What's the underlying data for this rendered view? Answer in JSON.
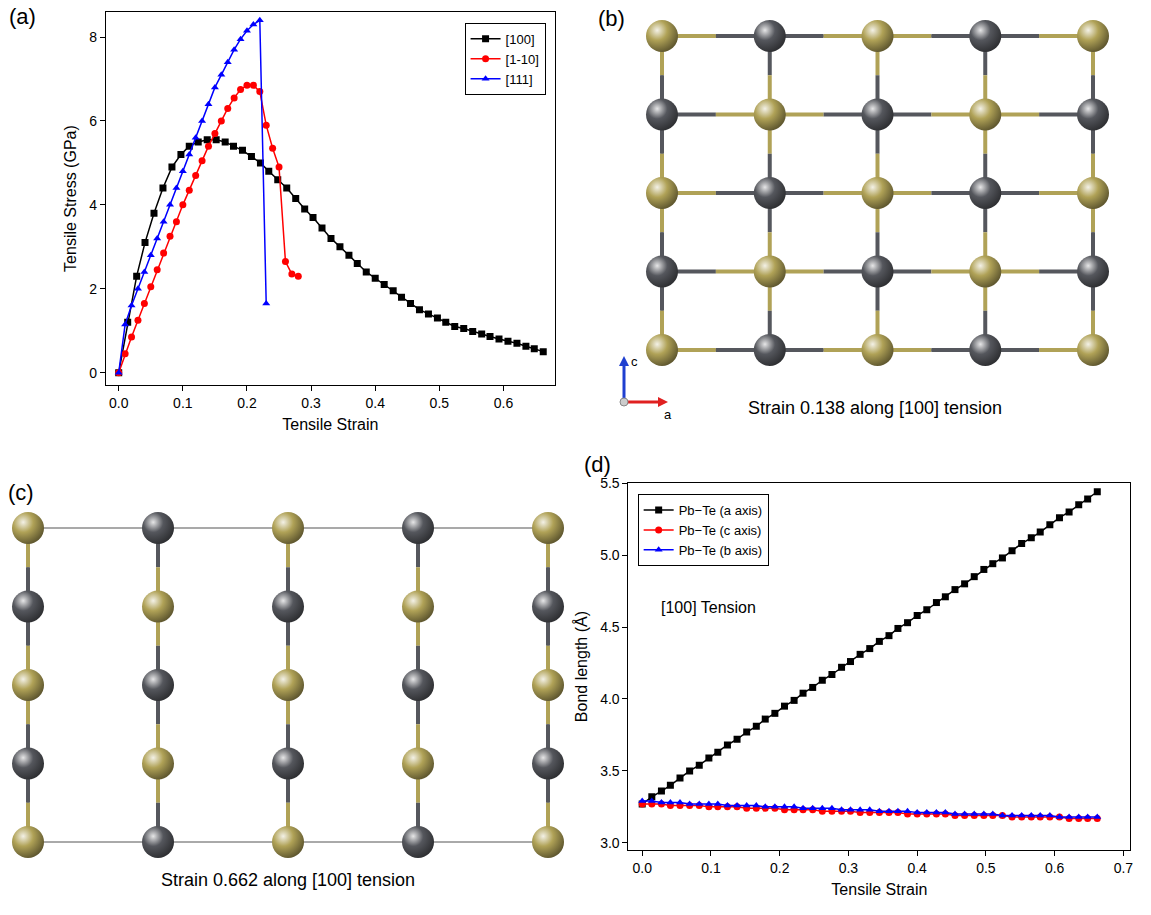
{
  "chart_data": [
    {
      "type": "line",
      "label": "(a)",
      "x_label": "Tensile Strain",
      "y_label": "Tensile Stress (GPa)",
      "xlim": [
        -0.02,
        0.68
      ],
      "ylim": [
        -0.3,
        8.6
      ],
      "xticks": [
        {
          "value": 0,
          "label": "0.0"
        },
        0.1,
        0.2,
        0.3,
        0.4,
        0.5,
        0.6
      ],
      "yticks": [
        0,
        2,
        4,
        6,
        8
      ],
      "grid": false,
      "legend": "upper right",
      "series": [
        {
          "name": "[100]",
          "color": "#000000",
          "marker": "square",
          "line_style": "solid",
          "x": [
            0,
            0.014,
            0.028,
            0.041,
            0.055,
            0.069,
            0.083,
            0.097,
            0.11,
            0.124,
            0.138,
            0.152,
            0.166,
            0.179,
            0.193,
            0.207,
            0.221,
            0.234,
            0.248,
            0.262,
            0.276,
            0.29,
            0.303,
            0.317,
            0.331,
            0.345,
            0.359,
            0.372,
            0.386,
            0.4,
            0.414,
            0.428,
            0.441,
            0.455,
            0.469,
            0.483,
            0.497,
            0.51,
            0.524,
            0.538,
            0.552,
            0.566,
            0.579,
            0.593,
            0.607,
            0.621,
            0.635,
            0.648,
            0.662
          ],
          "values": [
            0,
            1.2,
            2.3,
            3.1,
            3.8,
            4.4,
            4.9,
            5.2,
            5.4,
            5.5,
            5.55,
            5.55,
            5.5,
            5.4,
            5.3,
            5.15,
            5.0,
            4.8,
            4.6,
            4.4,
            4.15,
            3.9,
            3.7,
            3.45,
            3.2,
            3.0,
            2.8,
            2.6,
            2.4,
            2.25,
            2.1,
            1.95,
            1.8,
            1.65,
            1.5,
            1.4,
            1.3,
            1.2,
            1.1,
            1.05,
            0.98,
            0.92,
            0.86,
            0.8,
            0.75,
            0.7,
            0.63,
            0.57,
            0.5
          ]
        },
        {
          "name": "[1-10]",
          "color": "#ff0000",
          "marker": "circle",
          "line_style": "solid",
          "x": [
            0,
            0.01,
            0.02,
            0.03,
            0.04,
            0.05,
            0.06,
            0.07,
            0.08,
            0.09,
            0.1,
            0.11,
            0.12,
            0.13,
            0.14,
            0.15,
            0.16,
            0.17,
            0.18,
            0.19,
            0.2,
            0.21,
            0.22,
            0.23,
            0.24,
            0.25,
            0.26,
            0.27,
            0.28
          ],
          "values": [
            0,
            0.45,
            0.85,
            1.25,
            1.65,
            2.05,
            2.45,
            2.85,
            3.25,
            3.6,
            4.0,
            4.35,
            4.7,
            5.05,
            5.4,
            5.7,
            6.0,
            6.3,
            6.55,
            6.75,
            6.85,
            6.85,
            6.7,
            5.9,
            5.35,
            4.9,
            2.65,
            2.35,
            2.3
          ]
        },
        {
          "name": "[111]",
          "color": "#0000ff",
          "marker": "triangle-up",
          "line_style": "solid",
          "x": [
            0,
            0.01,
            0.02,
            0.03,
            0.04,
            0.05,
            0.06,
            0.07,
            0.08,
            0.09,
            0.1,
            0.11,
            0.12,
            0.13,
            0.14,
            0.15,
            0.16,
            0.17,
            0.18,
            0.19,
            0.2,
            0.21,
            0.22,
            0.23
          ],
          "values": [
            0,
            1.15,
            1.6,
            2.0,
            2.4,
            2.8,
            3.2,
            3.6,
            4.0,
            4.4,
            4.8,
            5.2,
            5.6,
            6.0,
            6.4,
            6.8,
            7.1,
            7.4,
            7.7,
            7.95,
            8.15,
            8.3,
            8.4,
            1.65
          ]
        }
      ]
    },
    {
      "type": "line",
      "label": "(d)",
      "x_label": "Tensile Strain",
      "y_label": "Bond length (Å)",
      "xlim": [
        -0.02,
        0.71
      ],
      "ylim": [
        2.95,
        5.5
      ],
      "xticks": [
        {
          "value": 0,
          "label": "0.0"
        },
        0.1,
        0.2,
        0.3,
        0.4,
        0.5,
        0.6,
        0.7
      ],
      "yticks": [
        {
          "value": 3,
          "label": "3.0"
        },
        3.5,
        {
          "value": 4,
          "label": "4.0"
        },
        4.5,
        {
          "value": 5,
          "label": "5.0"
        },
        5.5
      ],
      "grid": false,
      "legend": "upper left",
      "annotations": [
        "[100] Tension"
      ],
      "x": [
        0,
        0.014,
        0.028,
        0.041,
        0.055,
        0.069,
        0.083,
        0.097,
        0.11,
        0.124,
        0.138,
        0.152,
        0.166,
        0.179,
        0.193,
        0.207,
        0.221,
        0.234,
        0.248,
        0.262,
        0.276,
        0.29,
        0.303,
        0.317,
        0.331,
        0.345,
        0.359,
        0.372,
        0.386,
        0.4,
        0.414,
        0.428,
        0.441,
        0.455,
        0.469,
        0.483,
        0.497,
        0.51,
        0.524,
        0.538,
        0.552,
        0.566,
        0.579,
        0.593,
        0.607,
        0.621,
        0.635,
        0.648,
        0.662
      ],
      "series": [
        {
          "name": "Pb−Te (a axis)",
          "color": "#000000",
          "marker": "square",
          "line_style": "solid",
          "values": [
            3.27,
            3.32,
            3.36,
            3.4,
            3.45,
            3.5,
            3.54,
            3.59,
            3.63,
            3.68,
            3.72,
            3.77,
            3.81,
            3.86,
            3.9,
            3.95,
            3.99,
            4.04,
            4.08,
            4.13,
            4.17,
            4.22,
            4.26,
            4.31,
            4.35,
            4.4,
            4.44,
            4.49,
            4.53,
            4.58,
            4.62,
            4.67,
            4.71,
            4.76,
            4.8,
            4.85,
            4.9,
            4.94,
            4.98,
            5.03,
            5.08,
            5.12,
            5.16,
            5.21,
            5.26,
            5.3,
            5.35,
            5.39,
            5.44
          ]
        },
        {
          "name": "Pb−Te (c axis)",
          "color": "#ff0000",
          "marker": "circle",
          "line_style": "solid",
          "values": [
            3.27,
            3.27,
            3.27,
            3.26,
            3.26,
            3.26,
            3.26,
            3.25,
            3.25,
            3.25,
            3.25,
            3.24,
            3.24,
            3.24,
            3.24,
            3.23,
            3.23,
            3.23,
            3.23,
            3.22,
            3.22,
            3.22,
            3.22,
            3.21,
            3.21,
            3.21,
            3.21,
            3.21,
            3.2,
            3.2,
            3.2,
            3.2,
            3.2,
            3.19,
            3.19,
            3.19,
            3.19,
            3.19,
            3.19,
            3.18,
            3.18,
            3.18,
            3.18,
            3.18,
            3.18,
            3.17,
            3.17,
            3.17,
            3.17
          ]
        },
        {
          "name": "Pb−Te (b axis)",
          "color": "#0000ff",
          "marker": "triangle-up",
          "line_style": "solid",
          "values": [
            3.29,
            3.29,
            3.28,
            3.28,
            3.28,
            3.27,
            3.27,
            3.27,
            3.27,
            3.26,
            3.26,
            3.26,
            3.26,
            3.25,
            3.25,
            3.25,
            3.25,
            3.24,
            3.24,
            3.24,
            3.24,
            3.23,
            3.23,
            3.23,
            3.23,
            3.22,
            3.22,
            3.22,
            3.22,
            3.21,
            3.21,
            3.21,
            3.21,
            3.2,
            3.2,
            3.2,
            3.2,
            3.2,
            3.19,
            3.19,
            3.19,
            3.19,
            3.19,
            3.19,
            3.18,
            3.18,
            3.18,
            3.18,
            3.18
          ]
        }
      ]
    }
  ],
  "diagrams": [
    {
      "label": "(b)",
      "caption": "Strain 0.138 along [100] tension",
      "rows": 5,
      "cols": 5,
      "bonds": [
        "a",
        "c"
      ],
      "colors": [
        "#b0a257",
        "#55575d"
      ],
      "axes": [
        "c",
        "a"
      ]
    },
    {
      "label": "(c)",
      "caption": "Strain 0.662 along [100] tension",
      "rows": 5,
      "cols": 5,
      "bonds": [
        "c"
      ],
      "colors": [
        "#b0a257",
        "#55575d"
      ]
    }
  ]
}
